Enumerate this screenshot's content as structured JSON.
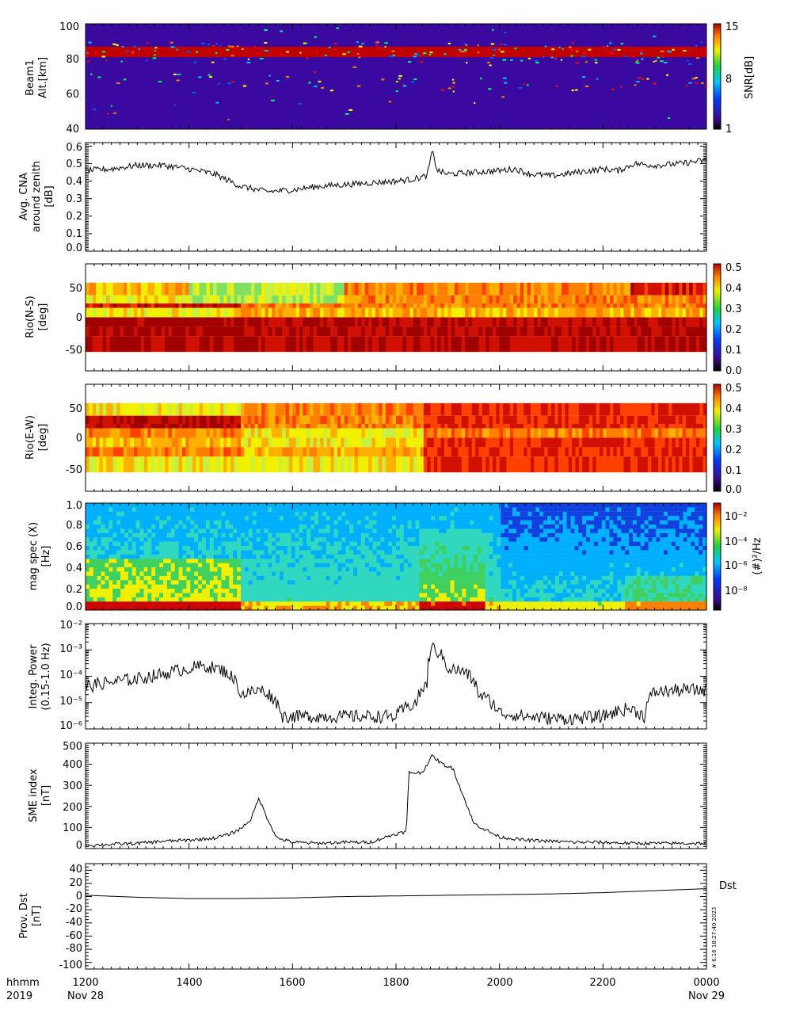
{
  "chart_data": [
    {
      "type": "heatmap",
      "ylabel": [
        "Beam1",
        "Alt.[km]"
      ],
      "yticks": [
        40,
        60,
        80,
        100
      ],
      "ylim": [
        40,
        100
      ],
      "colorbar": {
        "label": "SNR[dB]",
        "ticks": [
          "15",
          "8",
          "1"
        ],
        "range": [
          1,
          15
        ]
      },
      "features": [
        {
          "desc": "strong echo band",
          "y_range_km": [
            81,
            87
          ],
          "value_dB": 15
        },
        {
          "desc": "scattered echoes",
          "y_range_km": [
            60,
            100
          ],
          "value_dB": 8
        }
      ]
    },
    {
      "type": "line",
      "ylabel": [
        "Avg. CNA",
        "around zenith",
        "[dB]"
      ],
      "yticks": [
        "0.0",
        "0.1",
        "0.2",
        "0.3",
        "0.4",
        "0.5",
        "0.6"
      ],
      "ylim": [
        0,
        0.62
      ],
      "x_hours": [
        12,
        12.5,
        13,
        13.5,
        14,
        14.5,
        15,
        15.5,
        16,
        16.5,
        17,
        17.5,
        18,
        18.3,
        18.6,
        18.7,
        18.8,
        19,
        19.5,
        20,
        20.3,
        20.6,
        21,
        21.5,
        22,
        22.3,
        22.6,
        23,
        23.5,
        24
      ],
      "values": [
        0.46,
        0.47,
        0.49,
        0.49,
        0.47,
        0.44,
        0.37,
        0.34,
        0.35,
        0.37,
        0.38,
        0.39,
        0.4,
        0.41,
        0.43,
        0.57,
        0.46,
        0.44,
        0.45,
        0.46,
        0.47,
        0.44,
        0.43,
        0.45,
        0.47,
        0.46,
        0.5,
        0.49,
        0.5,
        0.52
      ]
    },
    {
      "type": "heatmap",
      "ylabel": [
        "Rio(N-S)",
        "[deg]"
      ],
      "yticks": [
        "50",
        "0",
        "-50"
      ],
      "ylim": [
        -85,
        85
      ],
      "colorbar": {
        "ticks": [
          "0.5",
          "0.4",
          "0.3",
          "0.2",
          "0.1",
          "0.0"
        ],
        "range": [
          0,
          0.5
        ]
      }
    },
    {
      "type": "heatmap",
      "ylabel": [
        "Rio(E-W)",
        "[deg]"
      ],
      "yticks": [
        "50",
        "0",
        "-50"
      ],
      "ylim": [
        -85,
        85
      ],
      "colorbar": {
        "ticks": [
          "0.5",
          "0.4",
          "0.3",
          "0.2",
          "0.1",
          "0.0"
        ],
        "range": [
          0,
          0.5
        ]
      }
    },
    {
      "type": "heatmap",
      "ylabel": [
        "mag spec (X)",
        "[Hz]"
      ],
      "yticks": [
        "0.0",
        "0.2",
        "0.4",
        "0.6",
        "0.8",
        "1.0"
      ],
      "ylim": [
        0,
        1.0
      ],
      "colorbar": {
        "label": "(#)²/Hz",
        "ticks": [
          "10⁻²",
          "10⁻⁴",
          "10⁻⁶",
          "10⁻⁸"
        ]
      }
    },
    {
      "type": "line",
      "yscale": "log",
      "ylabel": [
        "Integ. Power",
        "(0.15-1.0 Hz)"
      ],
      "yticks": [
        "10⁻⁶",
        "10⁻⁵",
        "10⁻⁴",
        "10⁻³",
        "10⁻²"
      ],
      "ylim": [
        1e-06,
        0.01
      ],
      "x_hours": [
        12,
        12.5,
        13,
        13.5,
        14,
        14.3,
        14.7,
        15,
        15.4,
        15.8,
        16,
        16.5,
        17,
        17.5,
        18,
        18.4,
        18.6,
        18.7,
        19,
        19.3,
        19.6,
        20,
        20.5,
        21,
        21.5,
        22,
        22.5,
        22.8,
        23,
        23.5,
        24
      ],
      "values": [
        4e-05,
        6e-05,
        8e-05,
        0.00012,
        0.0002,
        0.00025,
        0.00015,
        2e-05,
        3e-05,
        3e-06,
        3e-06,
        3e-06,
        3e-06,
        3e-06,
        3e-06,
        1e-05,
        5e-05,
        0.0012,
        0.0002,
        0.00015,
        2e-05,
        4e-06,
        3e-06,
        2.5e-06,
        2.5e-06,
        3e-06,
        6e-06,
        3e-06,
        2.5e-05,
        3e-05,
        3e-05
      ]
    },
    {
      "type": "line",
      "ylabel": [
        "SME index",
        "[nT]"
      ],
      "yticks": [
        "0",
        "100",
        "200",
        "300",
        "400",
        "500"
      ],
      "ylim": [
        0,
        500
      ],
      "x_hours": [
        12,
        12.5,
        13,
        13.5,
        14,
        14.5,
        14.8,
        15,
        15.2,
        15.35,
        15.5,
        15.7,
        16,
        16.5,
        17,
        17.5,
        18,
        18.2,
        18.25,
        18.5,
        18.7,
        18.9,
        19.1,
        19.3,
        19.5,
        19.8,
        20,
        20.5,
        21,
        21.5,
        22,
        22.5,
        23,
        23.5,
        24
      ],
      "values": [
        15,
        20,
        25,
        35,
        40,
        50,
        70,
        95,
        140,
        240,
        150,
        50,
        30,
        25,
        30,
        30,
        70,
        80,
        360,
        360,
        440,
        400,
        380,
        250,
        120,
        80,
        55,
        40,
        35,
        30,
        30,
        25,
        25,
        25,
        25
      ]
    },
    {
      "type": "line",
      "ylabel": [
        "Prov. Dst",
        "[nT]"
      ],
      "yticks": [
        "40",
        "20",
        "0",
        "-20",
        "-40",
        "-60",
        "-80",
        "-100"
      ],
      "ylim": [
        -110,
        50
      ],
      "legend_label": "Dst",
      "x_hours": [
        12,
        13,
        14,
        15,
        16,
        17,
        18,
        19,
        20,
        21,
        22,
        23,
        24
      ],
      "values": [
        2,
        -1,
        -3,
        -3,
        -2,
        0,
        1,
        2,
        3,
        4,
        6,
        9,
        12
      ]
    }
  ],
  "x_axis": {
    "ticks": [
      "1200",
      "1400",
      "1600",
      "1800",
      "2000",
      "2200",
      "0000"
    ],
    "label_left": [
      "hhmm",
      "2019"
    ],
    "date_start": "Nov 28",
    "date_end": "Nov 29"
  },
  "watermark": "# 6.16 18:27:40 2023"
}
